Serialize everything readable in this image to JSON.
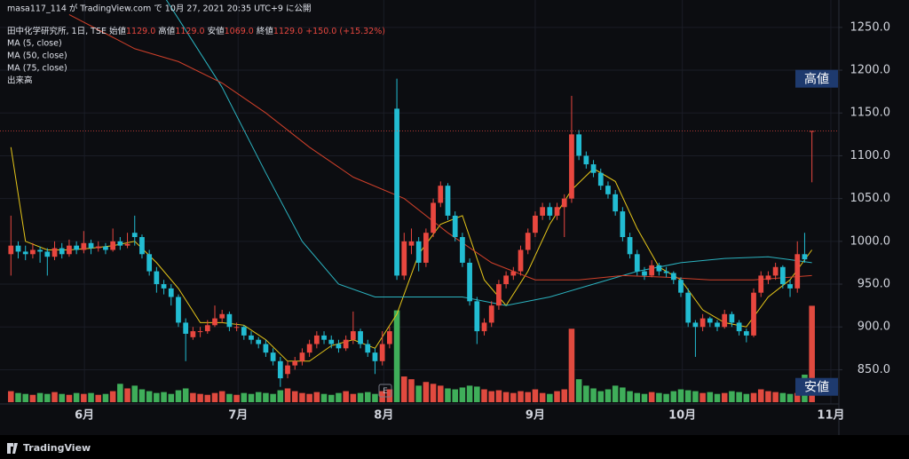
{
  "header": {
    "publisher": "masa117_114 が TradingView.com で 10月 27, 2021 20:35 UTC+9 に公開",
    "logo": "TradingView"
  },
  "chart_data": {
    "type": "candlestick",
    "symbol": "田中化学研究所, 1日, TSE",
    "ohlc_legend": [
      [
        "始値",
        "1129.0"
      ],
      [
        "高値",
        "1129.0"
      ],
      [
        "安値",
        "1069.0"
      ],
      [
        "終値",
        "1129.0"
      ]
    ],
    "change": "+150.0 (+15.32%)",
    "indicator_names": [
      "出来高"
    ],
    "badges": [
      "高値",
      "安値"
    ],
    "earnings_marker": "E",
    "up_color": "#e8473f",
    "down_color": "#22bcd2",
    "volume_up_color": "#e04a3f",
    "volume_down_color": "#3fae5a",
    "xlim": [
      -1.5,
      113.7
    ],
    "ylim": [
      810,
      1282
    ],
    "volume_lim": [
      0,
      440
    ],
    "grid": true,
    "xticks": [
      {
        "value": 10.1,
        "label": "6月"
      },
      {
        "value": 31.2,
        "label": "7月"
      },
      {
        "value": 51.2,
        "label": "8月"
      },
      {
        "value": 72,
        "label": "9月"
      },
      {
        "value": 92.2,
        "label": "10月"
      },
      {
        "value": 112.6,
        "label": "11月"
      }
    ],
    "yticks": [
      {
        "value": 850,
        "label": "850.0"
      },
      {
        "value": 900,
        "label": "900.0"
      },
      {
        "value": 950,
        "label": "950.0"
      },
      {
        "value": 1000,
        "label": "1000.0"
      },
      {
        "value": 1050,
        "label": "1050.0"
      },
      {
        "value": 1100,
        "label": "1100.0"
      },
      {
        "value": 1150,
        "label": "1150.0"
      },
      {
        "value": 1200,
        "label": "1200.0"
      },
      {
        "value": 1250,
        "label": "1250.0"
      }
    ],
    "candles": [
      [
        985,
        1030,
        960,
        995
      ],
      [
        995,
        1000,
        980,
        988
      ],
      [
        988,
        995,
        978,
        985
      ],
      [
        985,
        998,
        980,
        990
      ],
      [
        990,
        994,
        975,
        988
      ],
      [
        988,
        992,
        960,
        982
      ],
      [
        982,
        1000,
        978,
        992
      ],
      [
        992,
        998,
        980,
        985
      ],
      [
        985,
        1002,
        982,
        995
      ],
      [
        995,
        1000,
        985,
        990
      ],
      [
        990,
        1012,
        986,
        998
      ],
      [
        998,
        1002,
        985,
        992
      ],
      [
        992,
        1000,
        988,
        994
      ],
      [
        994,
        998,
        985,
        990
      ],
      [
        990,
        1015,
        988,
        1000
      ],
      [
        1000,
        1005,
        990,
        995
      ],
      [
        995,
        1010,
        992,
        997
      ],
      [
        1010,
        1030,
        995,
        1005
      ],
      [
        1005,
        1008,
        980,
        985
      ],
      [
        985,
        990,
        960,
        965
      ],
      [
        965,
        970,
        940,
        950
      ],
      [
        950,
        955,
        938,
        945
      ],
      [
        945,
        950,
        925,
        935
      ],
      [
        935,
        938,
        900,
        905
      ],
      [
        905,
        910,
        860,
        892
      ],
      [
        888,
        900,
        885,
        895
      ],
      [
        895,
        900,
        888,
        895
      ],
      [
        895,
        908,
        892,
        902
      ],
      [
        902,
        925,
        900,
        910
      ],
      [
        910,
        920,
        905,
        915
      ],
      [
        915,
        918,
        895,
        900
      ],
      [
        900,
        905,
        895,
        900
      ],
      [
        900,
        902,
        885,
        890
      ],
      [
        890,
        895,
        880,
        885
      ],
      [
        885,
        888,
        875,
        880
      ],
      [
        880,
        885,
        865,
        870
      ],
      [
        870,
        875,
        855,
        860
      ],
      [
        860,
        865,
        830,
        840
      ],
      [
        845,
        860,
        840,
        855
      ],
      [
        855,
        865,
        850,
        860
      ],
      [
        860,
        875,
        855,
        870
      ],
      [
        870,
        885,
        865,
        880
      ],
      [
        880,
        895,
        875,
        890
      ],
      [
        890,
        895,
        880,
        885
      ],
      [
        885,
        890,
        875,
        880
      ],
      [
        880,
        885,
        870,
        875
      ],
      [
        875,
        890,
        872,
        885
      ],
      [
        885,
        918,
        880,
        895
      ],
      [
        895,
        898,
        875,
        880
      ],
      [
        880,
        885,
        865,
        870
      ],
      [
        870,
        875,
        845,
        860
      ],
      [
        860,
        895,
        855,
        880
      ],
      [
        880,
        900,
        875,
        895
      ],
      [
        1155,
        1190,
        955,
        960
      ],
      [
        960,
        1010,
        955,
        1000
      ],
      [
        995,
        1015,
        985,
        1000
      ],
      [
        1000,
        1005,
        965,
        975
      ],
      [
        975,
        1015,
        970,
        1010
      ],
      [
        1010,
        1050,
        1005,
        1045
      ],
      [
        1045,
        1070,
        1040,
        1065
      ],
      [
        1065,
        1068,
        1025,
        1030
      ],
      [
        1030,
        1035,
        1000,
        1005
      ],
      [
        1005,
        1010,
        970,
        975
      ],
      [
        975,
        980,
        925,
        930
      ],
      [
        930,
        935,
        880,
        895
      ],
      [
        895,
        910,
        890,
        905
      ],
      [
        905,
        930,
        900,
        925
      ],
      [
        925,
        955,
        920,
        950
      ],
      [
        950,
        965,
        945,
        960
      ],
      [
        960,
        970,
        955,
        965
      ],
      [
        965,
        995,
        960,
        990
      ],
      [
        990,
        1015,
        985,
        1010
      ],
      [
        1010,
        1035,
        1005,
        1030
      ],
      [
        1030,
        1045,
        1025,
        1040
      ],
      [
        1040,
        1045,
        1025,
        1030
      ],
      [
        1030,
        1045,
        1025,
        1040
      ],
      [
        1040,
        1055,
        1005,
        1050
      ],
      [
        1050,
        1170,
        1045,
        1125
      ],
      [
        1125,
        1130,
        1095,
        1100
      ],
      [
        1100,
        1105,
        1085,
        1090
      ],
      [
        1090,
        1095,
        1075,
        1080
      ],
      [
        1080,
        1085,
        1060,
        1065
      ],
      [
        1065,
        1070,
        1050,
        1055
      ],
      [
        1055,
        1060,
        1030,
        1035
      ],
      [
        1035,
        1040,
        1000,
        1005
      ],
      [
        1005,
        1010,
        980,
        985
      ],
      [
        985,
        990,
        960,
        965
      ],
      [
        965,
        970,
        955,
        960
      ],
      [
        960,
        978,
        958,
        972
      ],
      [
        972,
        975,
        960,
        965
      ],
      [
        965,
        970,
        958,
        963
      ],
      [
        963,
        965,
        950,
        955
      ],
      [
        955,
        958,
        935,
        940
      ],
      [
        940,
        945,
        900,
        905
      ],
      [
        905,
        908,
        865,
        900
      ],
      [
        900,
        915,
        895,
        910
      ],
      [
        910,
        912,
        900,
        905
      ],
      [
        905,
        908,
        895,
        900
      ],
      [
        900,
        920,
        898,
        915
      ],
      [
        915,
        918,
        900,
        905
      ],
      [
        905,
        908,
        890,
        895
      ],
      [
        895,
        898,
        882,
        890
      ],
      [
        890,
        945,
        888,
        940
      ],
      [
        940,
        965,
        935,
        960
      ],
      [
        955,
        965,
        950,
        960
      ],
      [
        960,
        975,
        955,
        970
      ],
      [
        970,
        972,
        945,
        950
      ],
      [
        950,
        955,
        935,
        945
      ],
      [
        945,
        1000,
        940,
        985
      ],
      [
        985,
        1010,
        975,
        979
      ],
      [
        1129,
        1129,
        1069,
        1129
      ]
    ],
    "volumes": [
      12,
      10,
      9,
      8,
      10,
      9,
      11,
      9,
      8,
      10,
      9,
      10,
      8,
      9,
      12,
      20,
      15,
      18,
      14,
      12,
      10,
      11,
      9,
      13,
      15,
      10,
      9,
      8,
      10,
      12,
      9,
      8,
      10,
      9,
      11,
      10,
      9,
      13,
      15,
      12,
      10,
      9,
      11,
      9,
      8,
      10,
      12,
      9,
      10,
      11,
      9,
      12,
      14,
      100,
      28,
      25,
      18,
      22,
      20,
      18,
      15,
      14,
      16,
      18,
      17,
      14,
      12,
      13,
      11,
      10,
      12,
      11,
      14,
      10,
      9,
      12,
      14,
      80,
      25,
      18,
      15,
      12,
      14,
      18,
      16,
      12,
      10,
      9,
      11,
      10,
      9,
      12,
      14,
      13,
      12,
      10,
      11,
      9,
      10,
      12,
      11,
      9,
      10,
      14,
      12,
      11,
      10,
      9,
      10,
      30,
      105
    ],
    "series": [
      {
        "name": "MA (5, close)",
        "color": "#e6c619",
        "x": [
          0,
          2,
          5,
          8,
          11,
          14,
          17,
          20,
          23,
          26,
          29,
          32,
          35,
          38,
          41,
          44,
          47,
          50,
          53,
          56,
          59,
          62,
          65,
          68,
          71,
          74,
          77,
          80,
          83,
          86,
          89,
          92,
          95,
          98,
          101,
          104,
          107,
          110
        ],
        "values": [
          1110,
          1000,
          990,
          990,
          992,
          995,
          1000,
          975,
          945,
          905,
          905,
          902,
          885,
          860,
          860,
          878,
          885,
          875,
          915,
          985,
          1020,
          1030,
          955,
          925,
          965,
          1020,
          1060,
          1085,
          1070,
          1015,
          970,
          955,
          920,
          905,
          900,
          935,
          955,
          990
        ]
      },
      {
        "name": "MA (50, close)",
        "color": "#2bb3c0",
        "x": [
          20,
          23,
          29,
          35,
          40,
          45,
          50,
          56,
          62,
          68,
          74,
          80,
          86,
          92,
          98,
          104,
          110
        ],
        "values": [
          1300,
          1260,
          1180,
          1080,
          1000,
          950,
          935,
          935,
          935,
          925,
          935,
          950,
          965,
          975,
          980,
          982,
          975
        ]
      },
      {
        "name": "MA (75, close)",
        "color": "#d0402a",
        "x": [
          8,
          17,
          23,
          29,
          35,
          41,
          47,
          54,
          60,
          66,
          72,
          78,
          84,
          90,
          96,
          102,
          110
        ],
        "values": [
          1265,
          1225,
          1210,
          1185,
          1150,
          1110,
          1075,
          1050,
          1010,
          975,
          955,
          955,
          960,
          958,
          955,
          955,
          960
        ]
      }
    ]
  }
}
